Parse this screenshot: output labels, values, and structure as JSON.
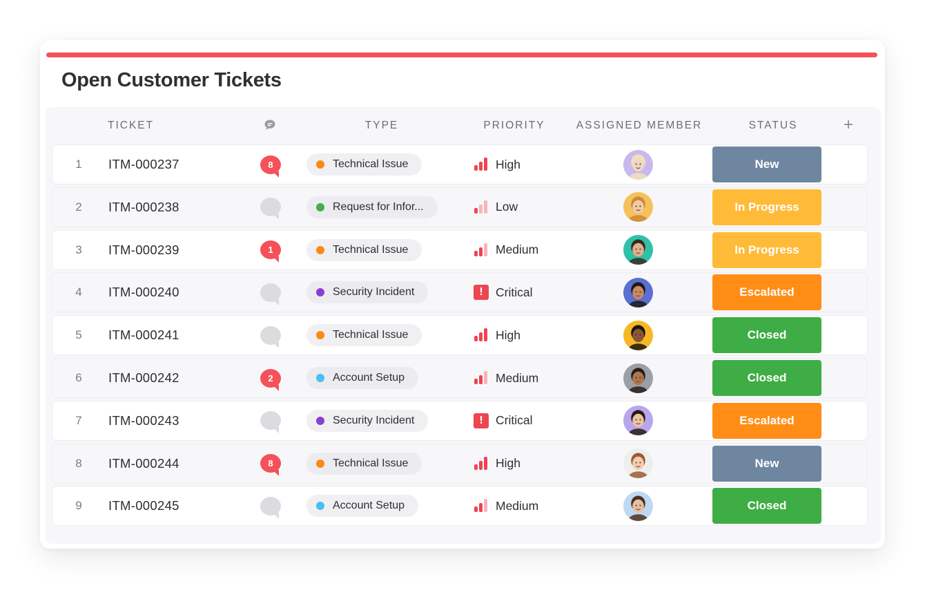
{
  "page": {
    "title": "Open Customer Tickets",
    "accent_color": "#f4515a"
  },
  "columns": {
    "ticket": "TICKET",
    "comments_icon": "comment-icon",
    "type": "TYPE",
    "priority": "PRIORITY",
    "assigned_member": "ASSIGNED MEMBER",
    "status": "STATUS",
    "add_icon": "+"
  },
  "type_colors": {
    "Technical Issue": "#f98a15",
    "Request for Infor...": "#3fb04a",
    "Security Incident": "#8b3fcf",
    "Account Setup": "#48c0f0"
  },
  "status_colors": {
    "New": "#6f86a1",
    "In Progress": "#ffbb38",
    "Escalated": "#ff8d16",
    "Closed": "#3fad46"
  },
  "priority_colors": {
    "active": "#ee4550",
    "inactive": "#f7b3b7"
  },
  "tickets": [
    {
      "num": "1",
      "id": "ITM-000237",
      "comments": "8",
      "type": "Technical Issue",
      "priority": "High",
      "level": 3,
      "status": "New",
      "avatar": {
        "skin": "#f3d6c4",
        "hair": "#f0e2b8",
        "bg": "#c9b8f0"
      }
    },
    {
      "num": "2",
      "id": "ITM-000238",
      "comments": "",
      "type": "Request for Infor...",
      "priority": "Low",
      "level": 1,
      "status": "In Progress",
      "avatar": {
        "skin": "#f4c9a4",
        "hair": "#c98a3a",
        "bg": "#f5c15c"
      }
    },
    {
      "num": "3",
      "id": "ITM-000239",
      "comments": "1",
      "type": "Technical Issue",
      "priority": "Medium",
      "level": 2,
      "status": "In Progress",
      "avatar": {
        "skin": "#e3b08c",
        "hair": "#3a2a20",
        "bg": "#2fc0a8"
      }
    },
    {
      "num": "4",
      "id": "ITM-000240",
      "comments": "",
      "type": "Security Incident",
      "priority": "Critical",
      "level": 4,
      "status": "Escalated",
      "avatar": {
        "skin": "#c98a66",
        "hair": "#1f1a18",
        "bg": "#5a6fcf"
      }
    },
    {
      "num": "5",
      "id": "ITM-000241",
      "comments": "",
      "type": "Technical Issue",
      "priority": "High",
      "level": 3,
      "status": "Closed",
      "avatar": {
        "skin": "#8a5534",
        "hair": "#1c1410",
        "bg": "#f6b825"
      }
    },
    {
      "num": "6",
      "id": "ITM-000242",
      "comments": "2",
      "type": "Account Setup",
      "priority": "Medium",
      "level": 2,
      "status": "Closed",
      "avatar": {
        "skin": "#b07650",
        "hair": "#2a1d15",
        "bg": "#9aa0a6"
      }
    },
    {
      "num": "7",
      "id": "ITM-000243",
      "comments": "",
      "type": "Security Incident",
      "priority": "Critical",
      "level": 4,
      "status": "Escalated",
      "avatar": {
        "skin": "#eac3a2",
        "hair": "#2a1a14",
        "bg": "#b7a6ee"
      }
    },
    {
      "num": "8",
      "id": "ITM-000244",
      "comments": "8",
      "type": "Technical Issue",
      "priority": "High",
      "level": 3,
      "status": "New",
      "avatar": {
        "skin": "#f2cdb0",
        "hair": "#9a5b32",
        "bg": "#eeeeee"
      }
    },
    {
      "num": "9",
      "id": "ITM-000245",
      "comments": "",
      "type": "Account Setup",
      "priority": "Medium",
      "level": 2,
      "status": "Closed",
      "avatar": {
        "skin": "#e8bf9d",
        "hair": "#4a3020",
        "bg": "#bfd8f2"
      }
    }
  ]
}
